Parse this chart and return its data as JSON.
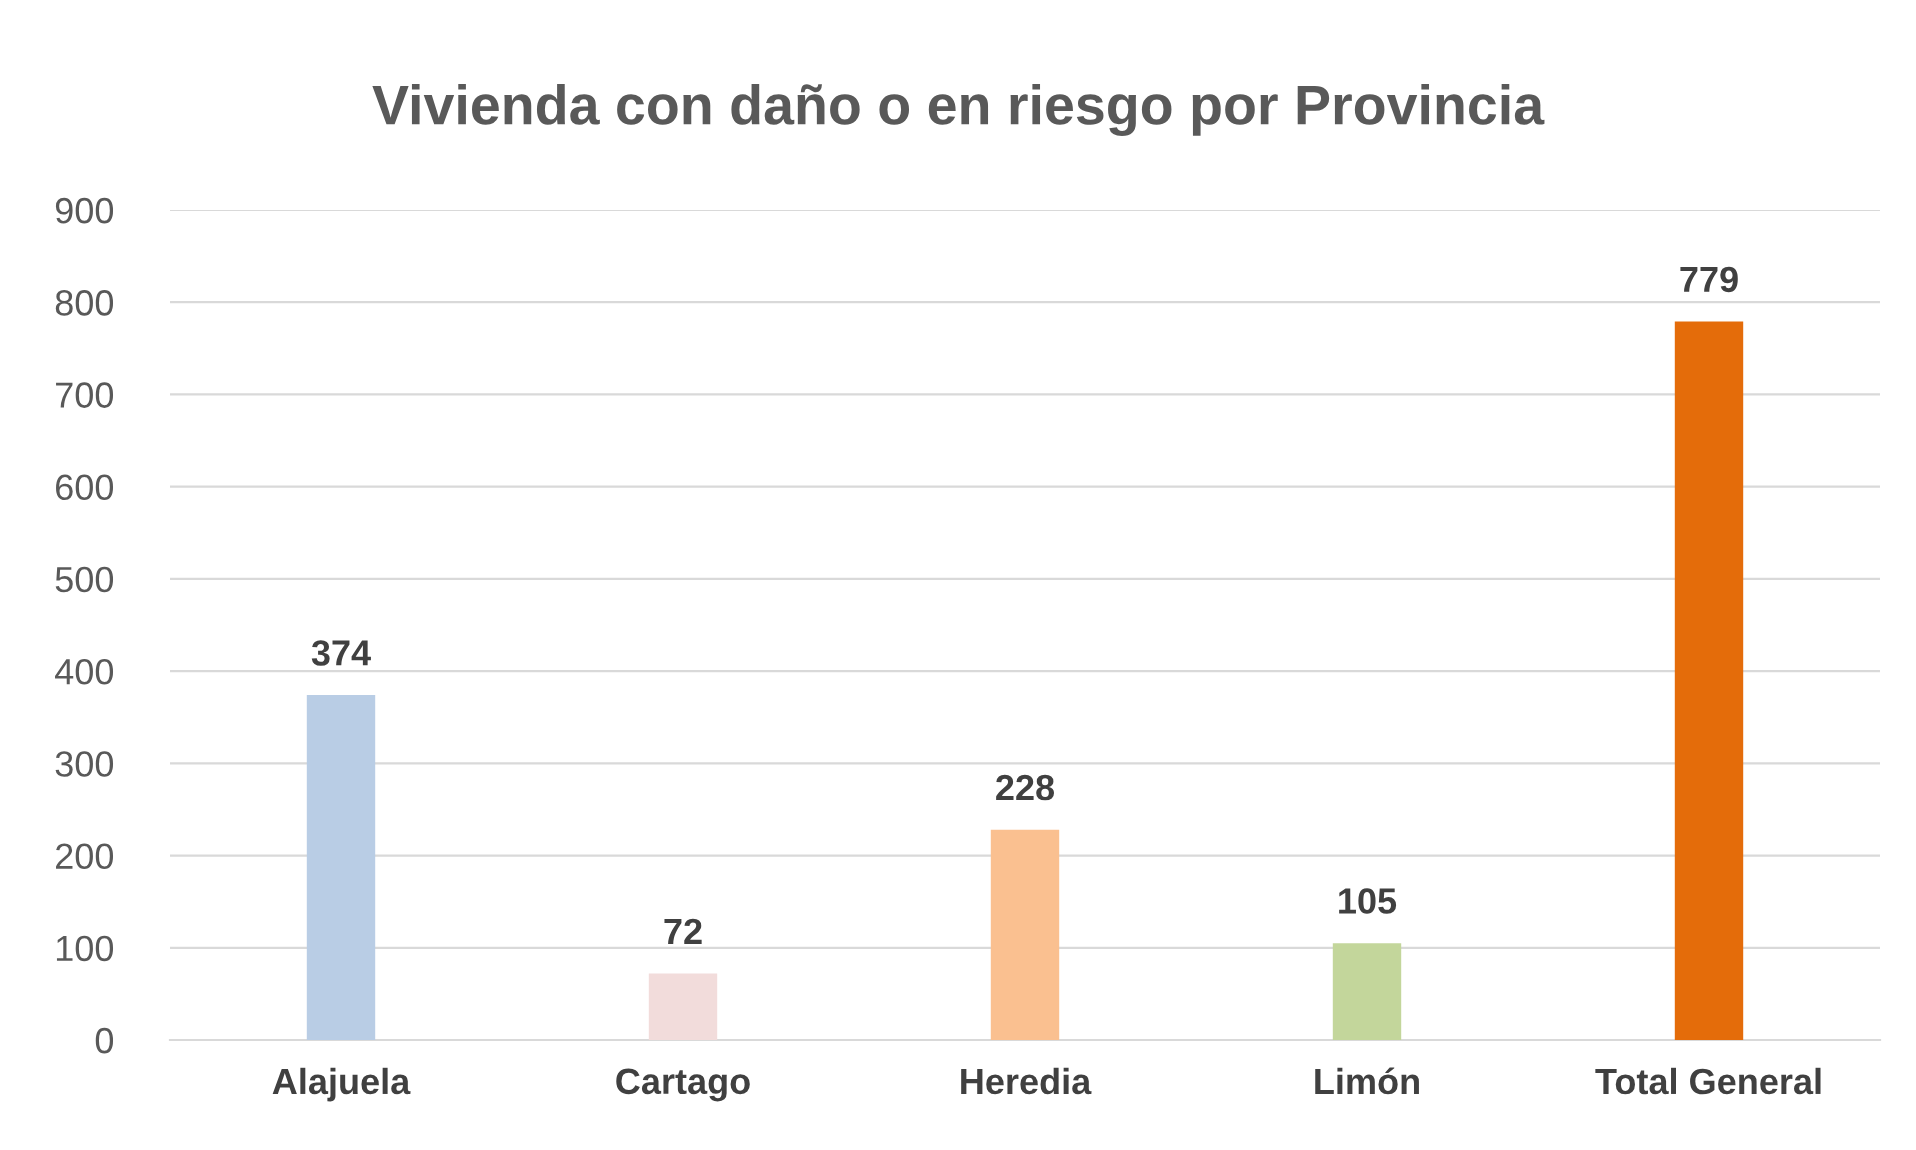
{
  "chart_data": {
    "type": "bar",
    "title": "Vivienda con daño o en riesgo por Provincia",
    "categories": [
      "Alajuela",
      "Cartago",
      "Heredia",
      "Limón",
      "Total General"
    ],
    "values": [
      374,
      72,
      228,
      105,
      779
    ],
    "colors": [
      "#b9cde5",
      "#f2dcdb",
      "#fac090",
      "#c3d69b",
      "#e46c0a"
    ],
    "ylim": [
      0,
      900
    ],
    "yticks": [
      0,
      100,
      200,
      300,
      400,
      500,
      600,
      700,
      800,
      900
    ],
    "grid": "y",
    "data_labels": true,
    "legend": false
  }
}
